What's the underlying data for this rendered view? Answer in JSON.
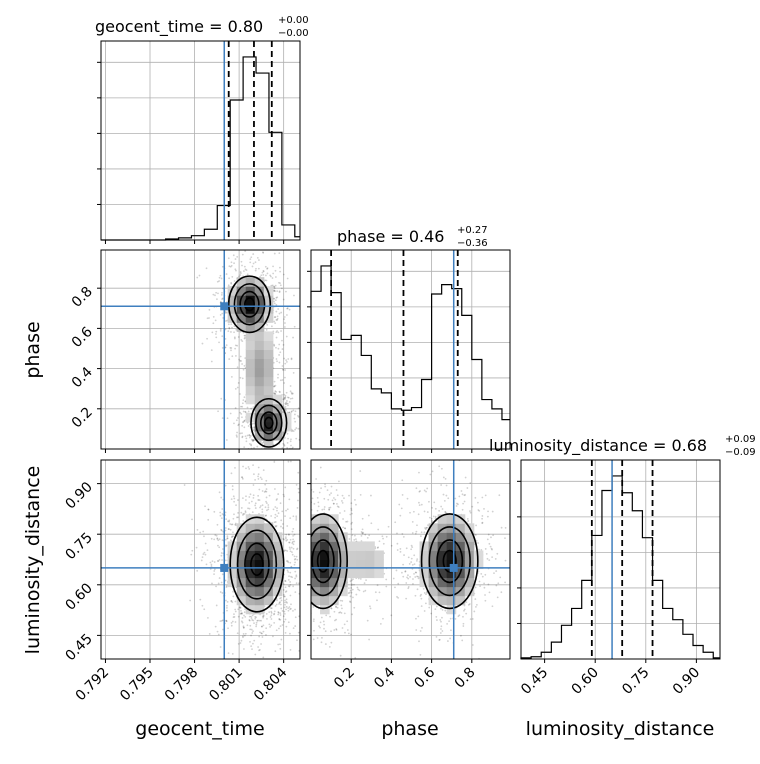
{
  "chart_data": {
    "type": "corner",
    "parameters": [
      "geocent_time",
      "phase",
      "luminosity_distance"
    ],
    "truths": {
      "geocent_time": 0.8,
      "phase": 0.71,
      "luminosity_distance": 0.65
    },
    "titles": {
      "geocent_time": {
        "label": "geocent_time = 0.80",
        "plus": "+0.00",
        "minus": "−0.00"
      },
      "phase": {
        "label": "phase = 0.46",
        "plus": "+0.27",
        "minus": "−0.36"
      },
      "luminosity_distance": {
        "label": "luminosity_distance = 0.68",
        "plus": "+0.09",
        "minus": "−0.09"
      }
    },
    "axis_labels": {
      "x": [
        "geocent_time",
        "phase",
        "luminosity_distance"
      ],
      "y": [
        "phase",
        "luminosity_distance"
      ]
    },
    "ticks": {
      "geocent_time": [
        "0.792",
        "0.795",
        "0.798",
        "0.801",
        "0.804"
      ],
      "phase": [
        "0.2",
        "0.4",
        "0.6",
        "0.8"
      ],
      "luminosity_distance": [
        "0.45",
        "0.60",
        "0.75",
        "0.90"
      ]
    },
    "ranges": {
      "geocent_time": [
        0.7917,
        0.8051
      ],
      "phase": [
        0.0,
        0.99
      ],
      "luminosity_distance": [
        0.38,
        0.97
      ]
    },
    "quantiles": {
      "geocent_time": [
        0.8003,
        0.802,
        0.8032
      ],
      "phase": [
        0.1,
        0.46,
        0.73
      ],
      "luminosity_distance": [
        0.59,
        0.68,
        0.77
      ]
    },
    "marginals": {
      "geocent_time": {
        "bin_edges": [
          0.7917,
          0.79257,
          0.79344,
          0.79431,
          0.79518,
          0.79605,
          0.79692,
          0.79779,
          0.79866,
          0.79953,
          0.8004,
          0.80127,
          0.80214,
          0.80301,
          0.80388,
          0.80475,
          0.8051
        ],
        "counts": [
          0,
          0,
          0,
          0,
          0,
          1,
          2,
          4,
          10,
          32,
          130,
          170,
          155,
          100,
          14,
          3
        ]
      },
      "phase": {
        "bin_edges": [
          0.0,
          0.05,
          0.1,
          0.15,
          0.2,
          0.25,
          0.3,
          0.35,
          0.4,
          0.45,
          0.5,
          0.55,
          0.6,
          0.65,
          0.7,
          0.75,
          0.8,
          0.85,
          0.9,
          0.95,
          0.99
        ],
        "counts": [
          118,
          137,
          117,
          82,
          85,
          70,
          45,
          42,
          30,
          29,
          31,
          52,
          116,
          123,
          120,
          100,
          67,
          37,
          30,
          22
        ]
      },
      "luminosity_distance": {
        "bin_edges": [
          0.38,
          0.41,
          0.44,
          0.47,
          0.5,
          0.53,
          0.56,
          0.59,
          0.62,
          0.65,
          0.68,
          0.71,
          0.74,
          0.77,
          0.8,
          0.83,
          0.86,
          0.89,
          0.92,
          0.95,
          0.97
        ],
        "counts": [
          1,
          2,
          6,
          15,
          30,
          45,
          70,
          110,
          150,
          163,
          148,
          132,
          108,
          70,
          45,
          35,
          22,
          12,
          6,
          1
        ]
      }
    },
    "panels_2d": {
      "phase_vs_geocent_time": {
        "x": "geocent_time",
        "y": "phase",
        "modes": [
          {
            "x": 0.8017,
            "y": 0.72,
            "sx": 0.0007,
            "sy": 0.07,
            "w": 1.0
          },
          {
            "x": 0.803,
            "y": 0.13,
            "sx": 0.0006,
            "sy": 0.06,
            "w": 0.9
          },
          {
            "x": 0.8024,
            "y": 0.4,
            "sx": 0.0007,
            "sy": 0.12,
            "w": 0.35
          }
        ]
      },
      "luminosity_distance_vs_geocent_time": {
        "x": "geocent_time",
        "y": "luminosity_distance",
        "modes": [
          {
            "x": 0.8022,
            "y": 0.66,
            "sx": 0.0009,
            "sy": 0.07,
            "w": 1.0
          }
        ]
      },
      "luminosity_distance_vs_phase": {
        "x": "phase",
        "y": "luminosity_distance",
        "modes": [
          {
            "x": 0.06,
            "y": 0.67,
            "sx": 0.06,
            "sy": 0.07,
            "w": 1.0
          },
          {
            "x": 0.69,
            "y": 0.67,
            "sx": 0.07,
            "sy": 0.07,
            "w": 1.0
          },
          {
            "x": 0.28,
            "y": 0.67,
            "sx": 0.08,
            "sy": 0.05,
            "w": 0.2
          }
        ]
      }
    },
    "grid": true,
    "colors": {
      "truth": "#3f7fbf",
      "contour": "#000000",
      "hist": "#000000"
    }
  }
}
